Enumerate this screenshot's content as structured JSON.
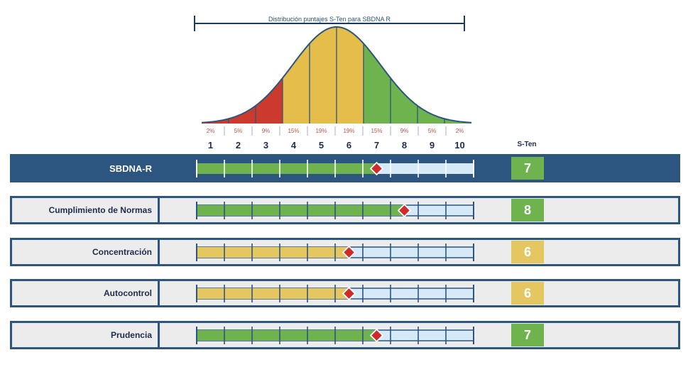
{
  "chart_data": {
    "type": "bar",
    "title": "Distribución puntajes S-Ten para SBDNA R",
    "scale": {
      "min": 1,
      "max": 10,
      "ticks": [
        "1",
        "2",
        "3",
        "4",
        "5",
        "6",
        "7",
        "8",
        "9",
        "10"
      ]
    },
    "distribution": {
      "percent_labels": [
        "2%",
        "5%",
        "9%",
        "15%",
        "19%",
        "19%",
        "15%",
        "9%",
        "5%",
        "2%"
      ],
      "band_colors": [
        "#cc3a2e",
        "#cc3a2e",
        "#cc3a2e",
        "#e4bd4a",
        "#e4bd4a",
        "#e4bd4a",
        "#6fb34e",
        "#6fb34e",
        "#6fb34e",
        "#6fb34e"
      ]
    },
    "score_column_label": "S-Ten",
    "rows": [
      {
        "label": "SBDNA-R",
        "value": 7,
        "color": "#6fb34e",
        "header": true
      },
      {
        "label": "Cumplimiento de Normas",
        "value": 8,
        "color": "#6fb34e",
        "header": false
      },
      {
        "label": "Concentración",
        "value": 6,
        "color": "#e4c760",
        "header": false
      },
      {
        "label": "Autocontrol",
        "value": 6,
        "color": "#e4c760",
        "header": false
      },
      {
        "label": "Prudencia",
        "value": 7,
        "color": "#6fb34e",
        "header": false
      }
    ]
  },
  "colors": {
    "navy": "#2c5580",
    "empty": "#d6e9f8",
    "marker": "#d12a2a",
    "pct_text": "#c0504d"
  }
}
